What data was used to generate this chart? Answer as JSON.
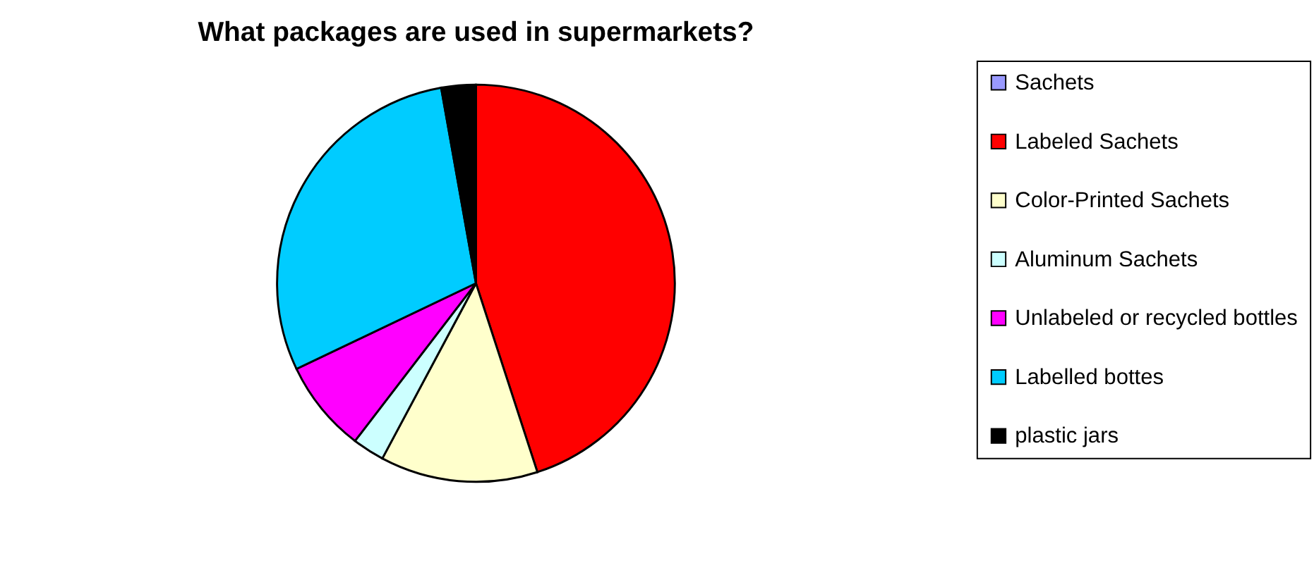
{
  "chart_data": {
    "type": "pie",
    "title": "What packages are used in supermarkets?",
    "categories": [
      "Sachets",
      "Labeled Sachets",
      "Color-Printed Sachets",
      "Aluminum Sachets",
      "Unlabeled or recycled bottles",
      "Labelled bottes",
      "plastic jars"
    ],
    "values": [
      0,
      45,
      12.8,
      2.6,
      7.5,
      29.3,
      2.8
    ],
    "colors": [
      "#9999ff",
      "#ff0000",
      "#ffffcc",
      "#ccffff",
      "#ff00ff",
      "#00ccff",
      "#000000"
    ],
    "legend": "right"
  }
}
